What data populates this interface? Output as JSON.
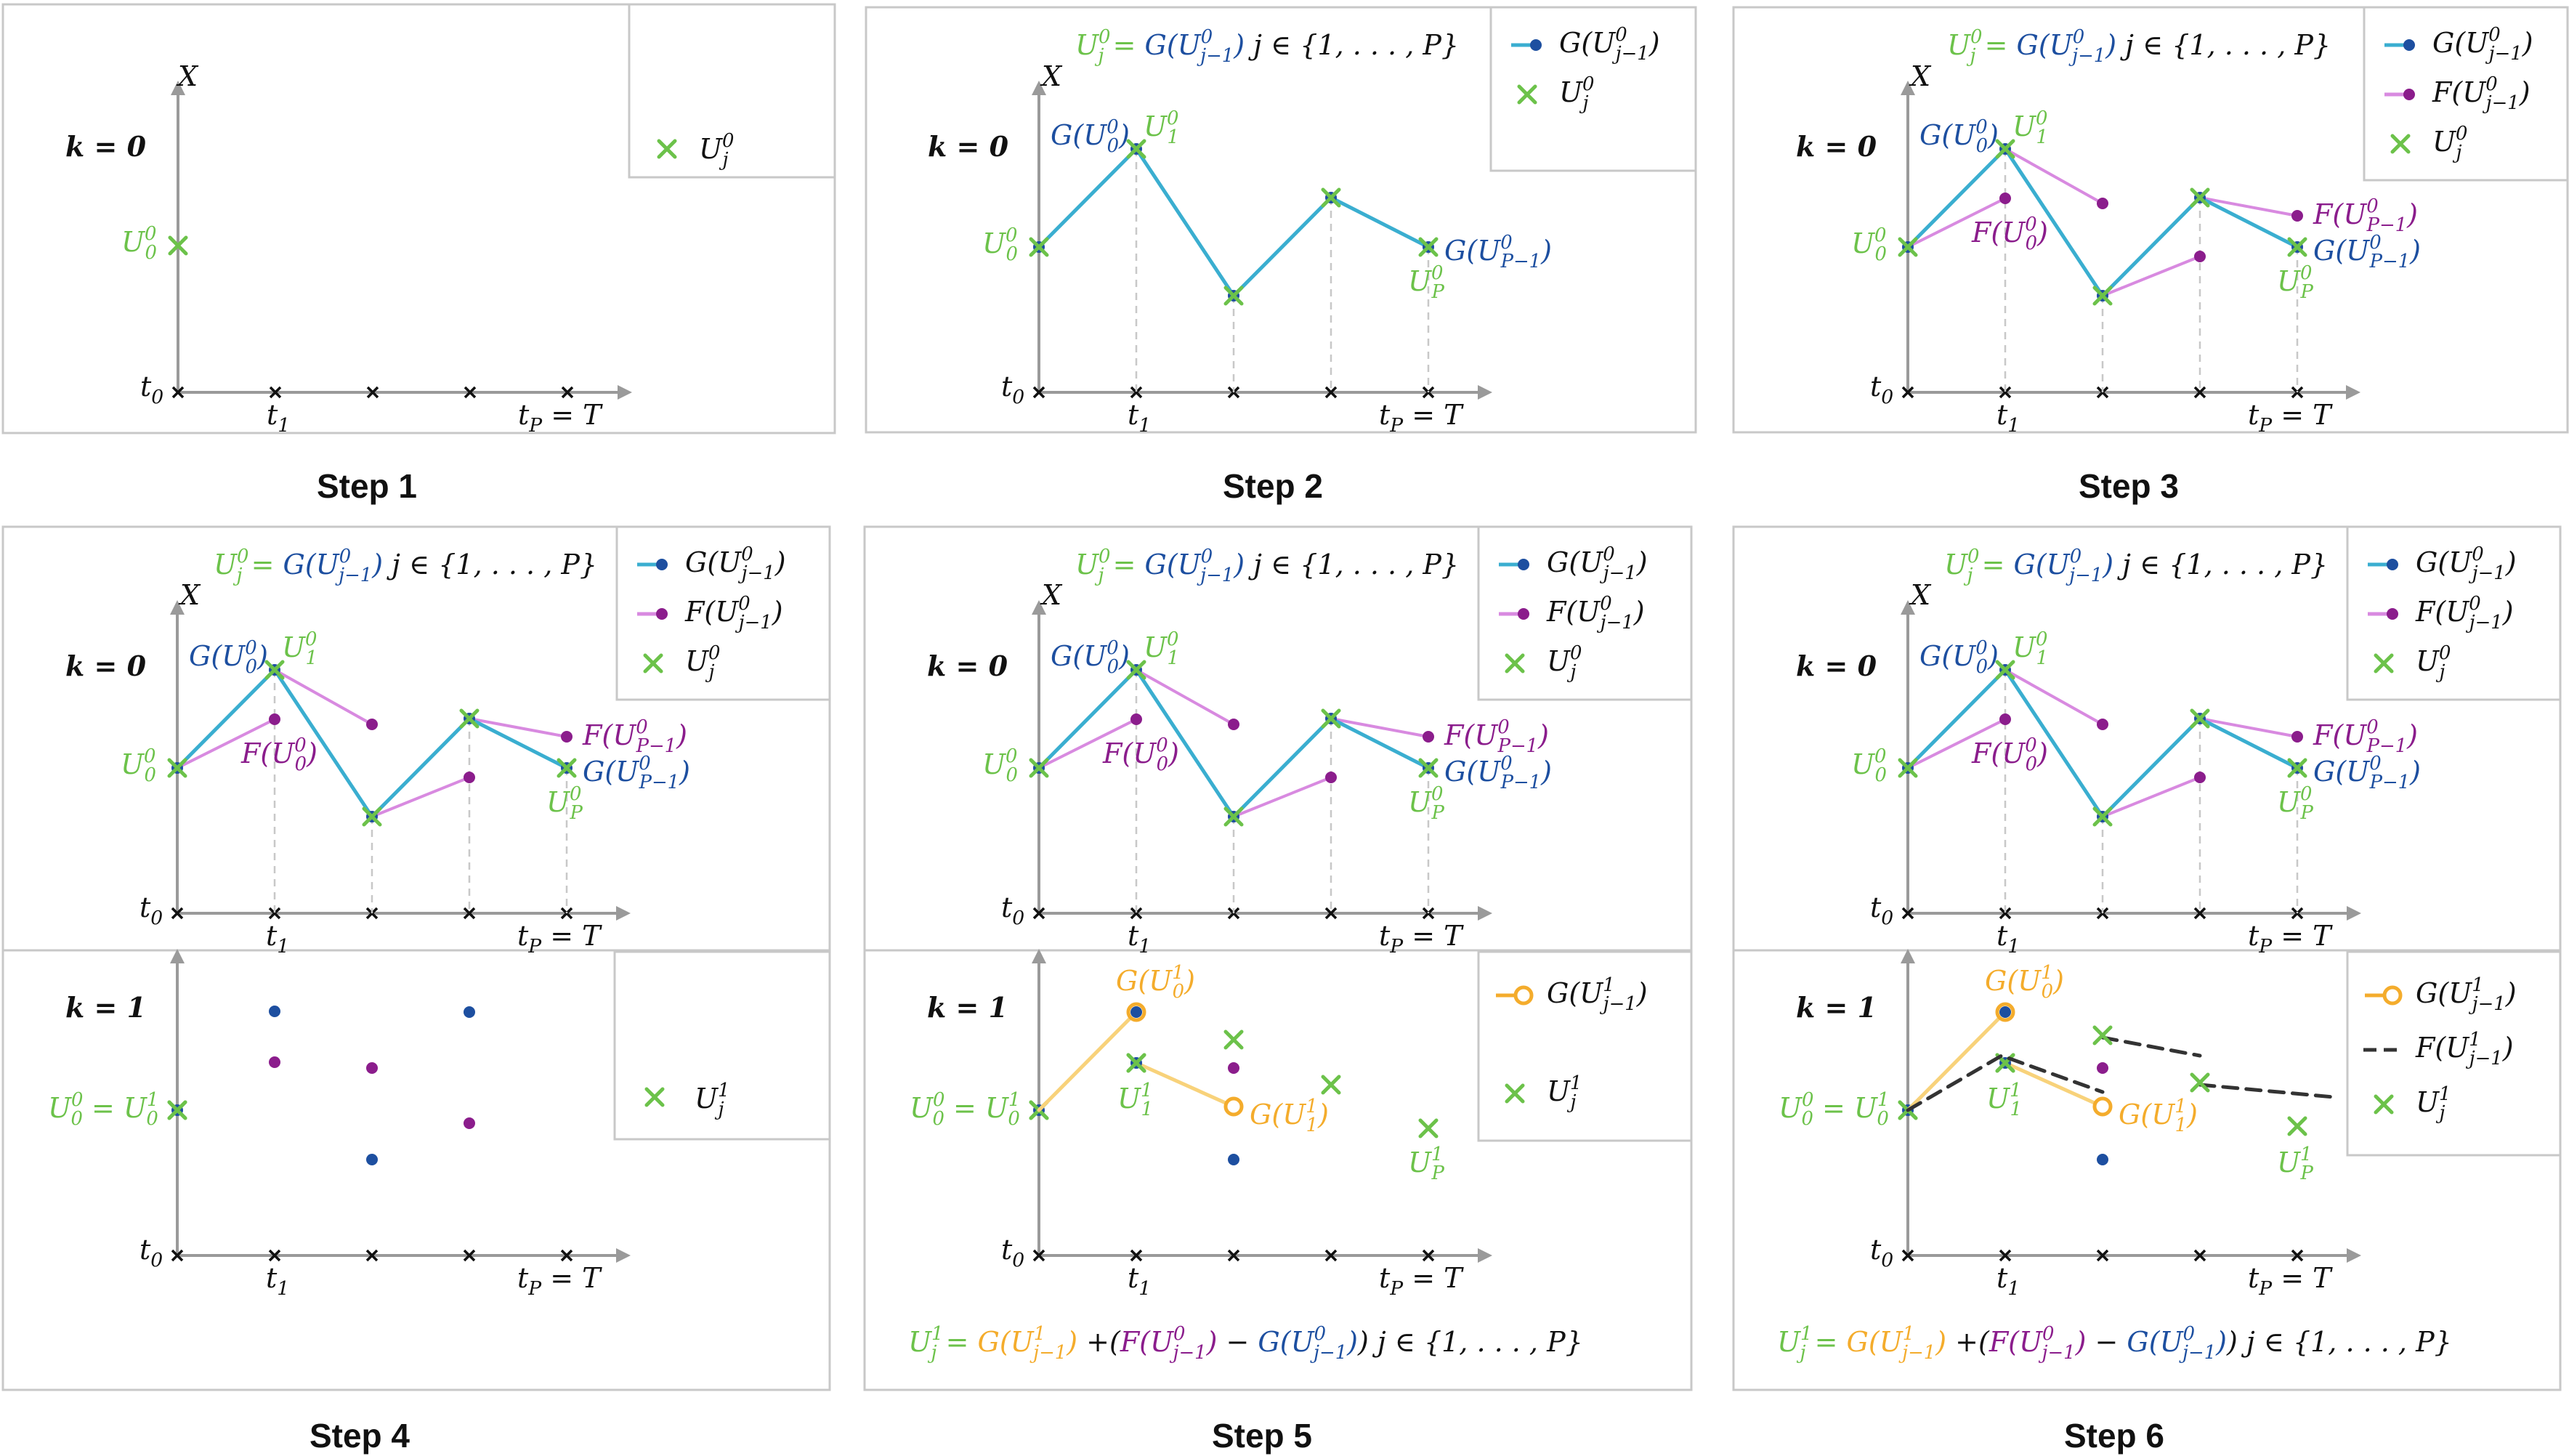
{
  "steps": [
    "Step 1",
    "Step 2",
    "Step 3",
    "Step 4",
    "Step 5",
    "Step 6"
  ],
  "k0": "k = 0",
  "k1": "k = 1",
  "axis_x": "X",
  "t0": "t0",
  "t1": "t1",
  "tP": "tP = T",
  "eq_G": "Uj0 = G(Uj−10)   j ∈ {1, . . . , P}",
  "eq_update": "Uj1 = G(Uj−11) +(F(Uj−10) − G(Uj−10))   j ∈ {1, . . . , P}",
  "legend": {
    "G0": "G(Uj−10)",
    "F0": "F(Uj−10)",
    "U0": "Uj0",
    "U1": "Uj1",
    "G1": "G(Uj−11)",
    "F1": "F(Uj−11)"
  },
  "labels": {
    "U00": "U00",
    "U10": "U10",
    "GU00": "G(U00)",
    "FU00": "F(U00)",
    "UP0": "UP0",
    "GUP": "G(UP−10)",
    "FUP": "F(UP−10)",
    "U0eq": "U00 = U01",
    "U11": "U11",
    "GU01": "G(U01)",
    "GU11": "G(U11)",
    "UP1": "UP1"
  },
  "colors": {
    "green": "#6cc24a",
    "blue": "#1d4fa0",
    "teal": "#3aaed0",
    "purple": "#8b1d8c",
    "pink": "#d88ae0",
    "orange": "#f4ac2c",
    "lightorange": "#f8d27a"
  }
}
